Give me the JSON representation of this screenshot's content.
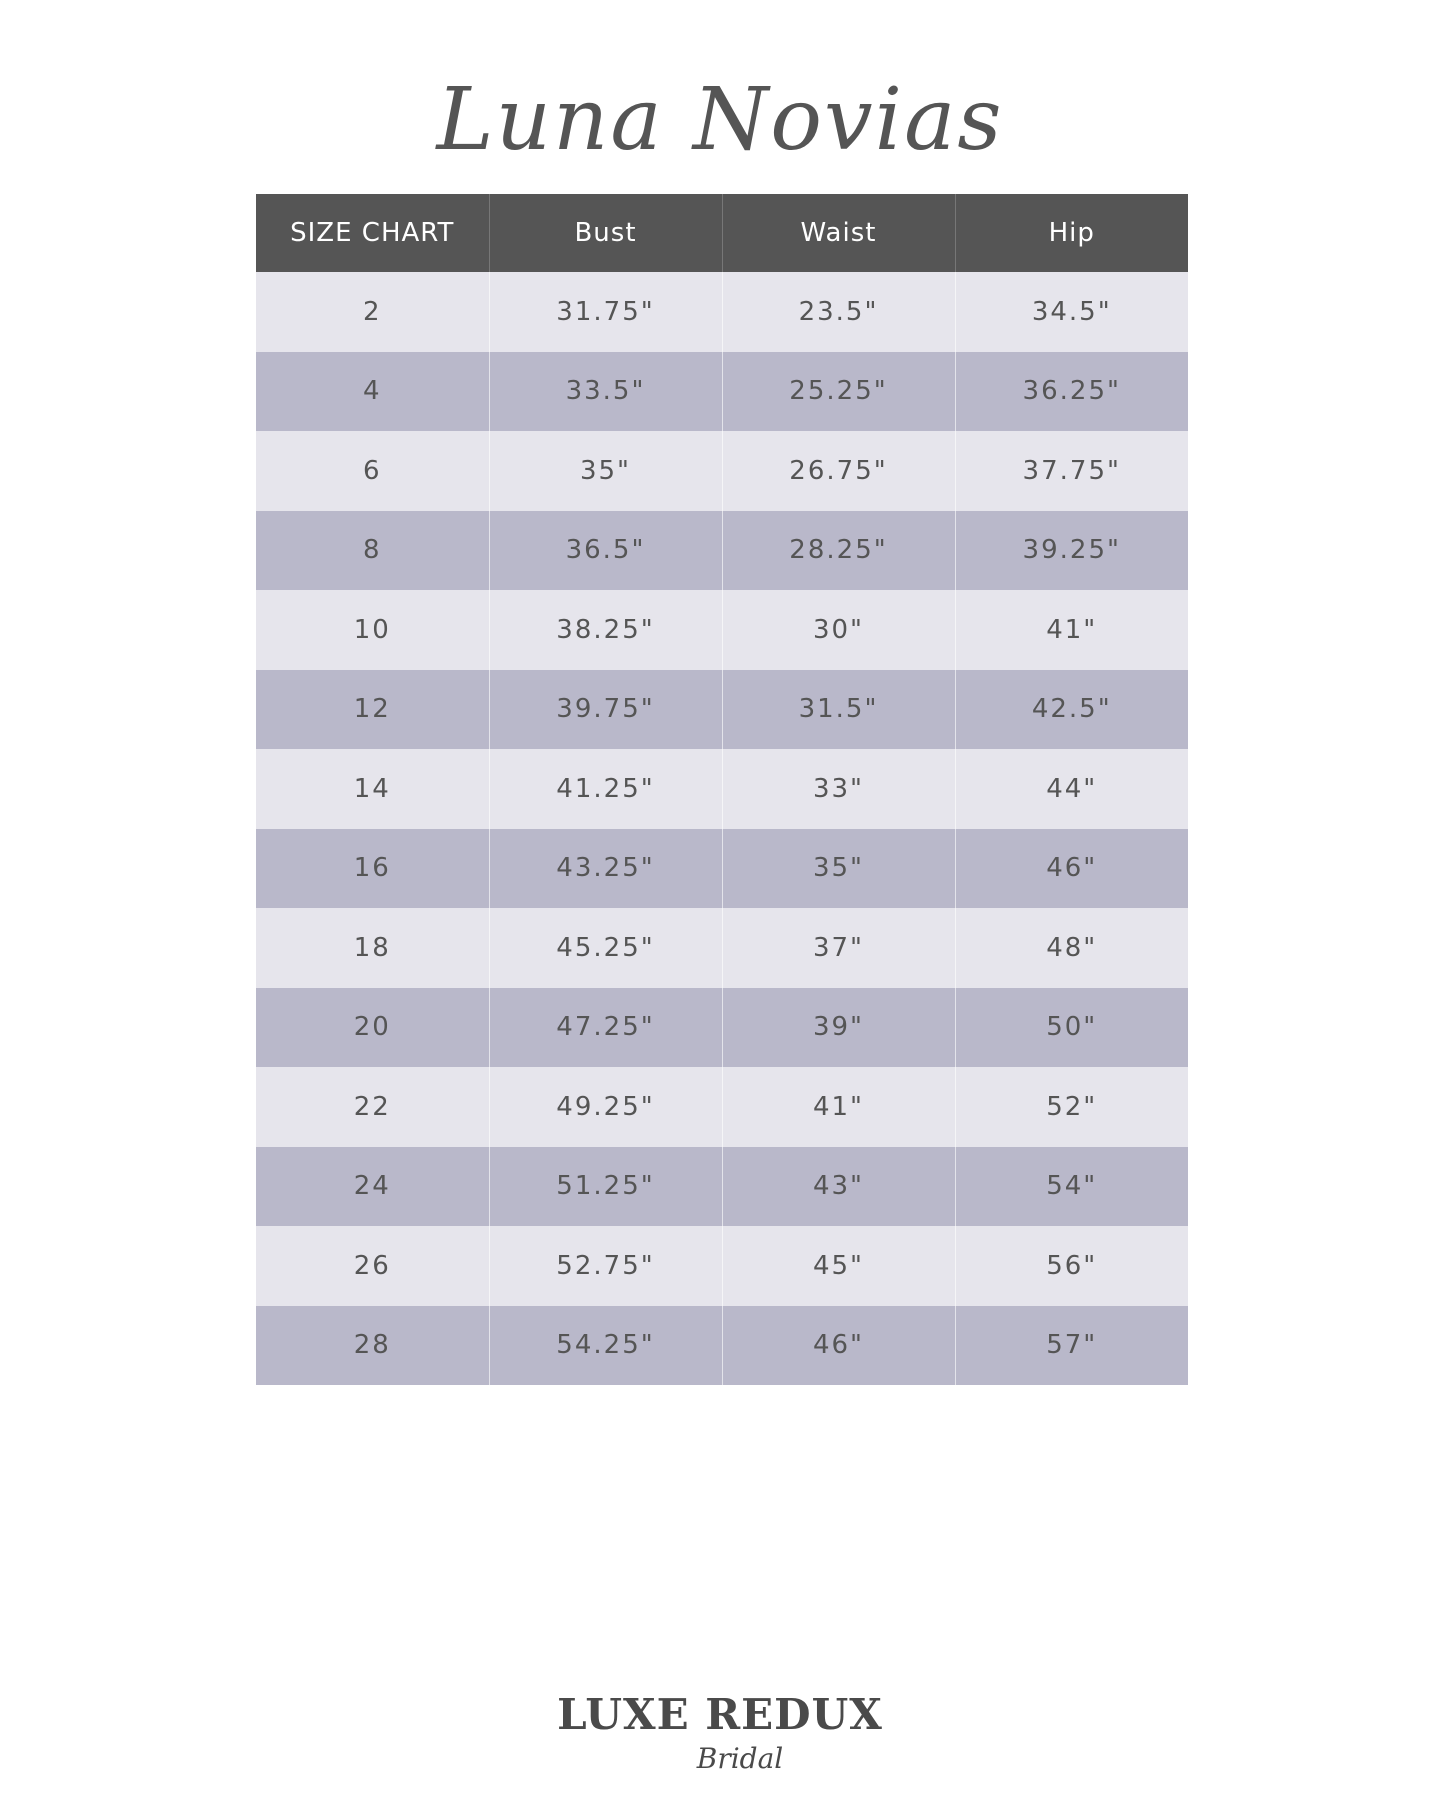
{
  "brand": {
    "title": "Luna Novias"
  },
  "table": {
    "headers": [
      "SIZE CHART",
      "Bust",
      "Waist",
      "Hip"
    ],
    "rows": [
      [
        "2",
        "31.75\"",
        "23.5\"",
        "34.5\""
      ],
      [
        "4",
        "33.5\"",
        "25.25\"",
        "36.25\""
      ],
      [
        "6",
        "35\"",
        "26.75\"",
        "37.75\""
      ],
      [
        "8",
        "36.5\"",
        "28.25\"",
        "39.25\""
      ],
      [
        "10",
        "38.25\"",
        "30\"",
        "41\""
      ],
      [
        "12",
        "39.75\"",
        "31.5\"",
        "42.5\""
      ],
      [
        "14",
        "41.25\"",
        "33\"",
        "44\""
      ],
      [
        "16",
        "43.25\"",
        "35\"",
        "46\""
      ],
      [
        "18",
        "45.25\"",
        "37\"",
        "48\""
      ],
      [
        "20",
        "47.25\"",
        "39\"",
        "50\""
      ],
      [
        "22",
        "49.25\"",
        "41\"",
        "52\""
      ],
      [
        "24",
        "51.25\"",
        "43\"",
        "54\""
      ],
      [
        "26",
        "52.75\"",
        "45\"",
        "56\""
      ],
      [
        "28",
        "54.25\"",
        "46\"",
        "57\""
      ]
    ]
  },
  "footer": {
    "logo_main": "LUXE REDUX",
    "logo_sub": "Bridal"
  },
  "colors": {
    "header": "#555555",
    "row_light": "#e6e5ec",
    "row_dark": "#b9b8ca",
    "text": "#555555"
  }
}
